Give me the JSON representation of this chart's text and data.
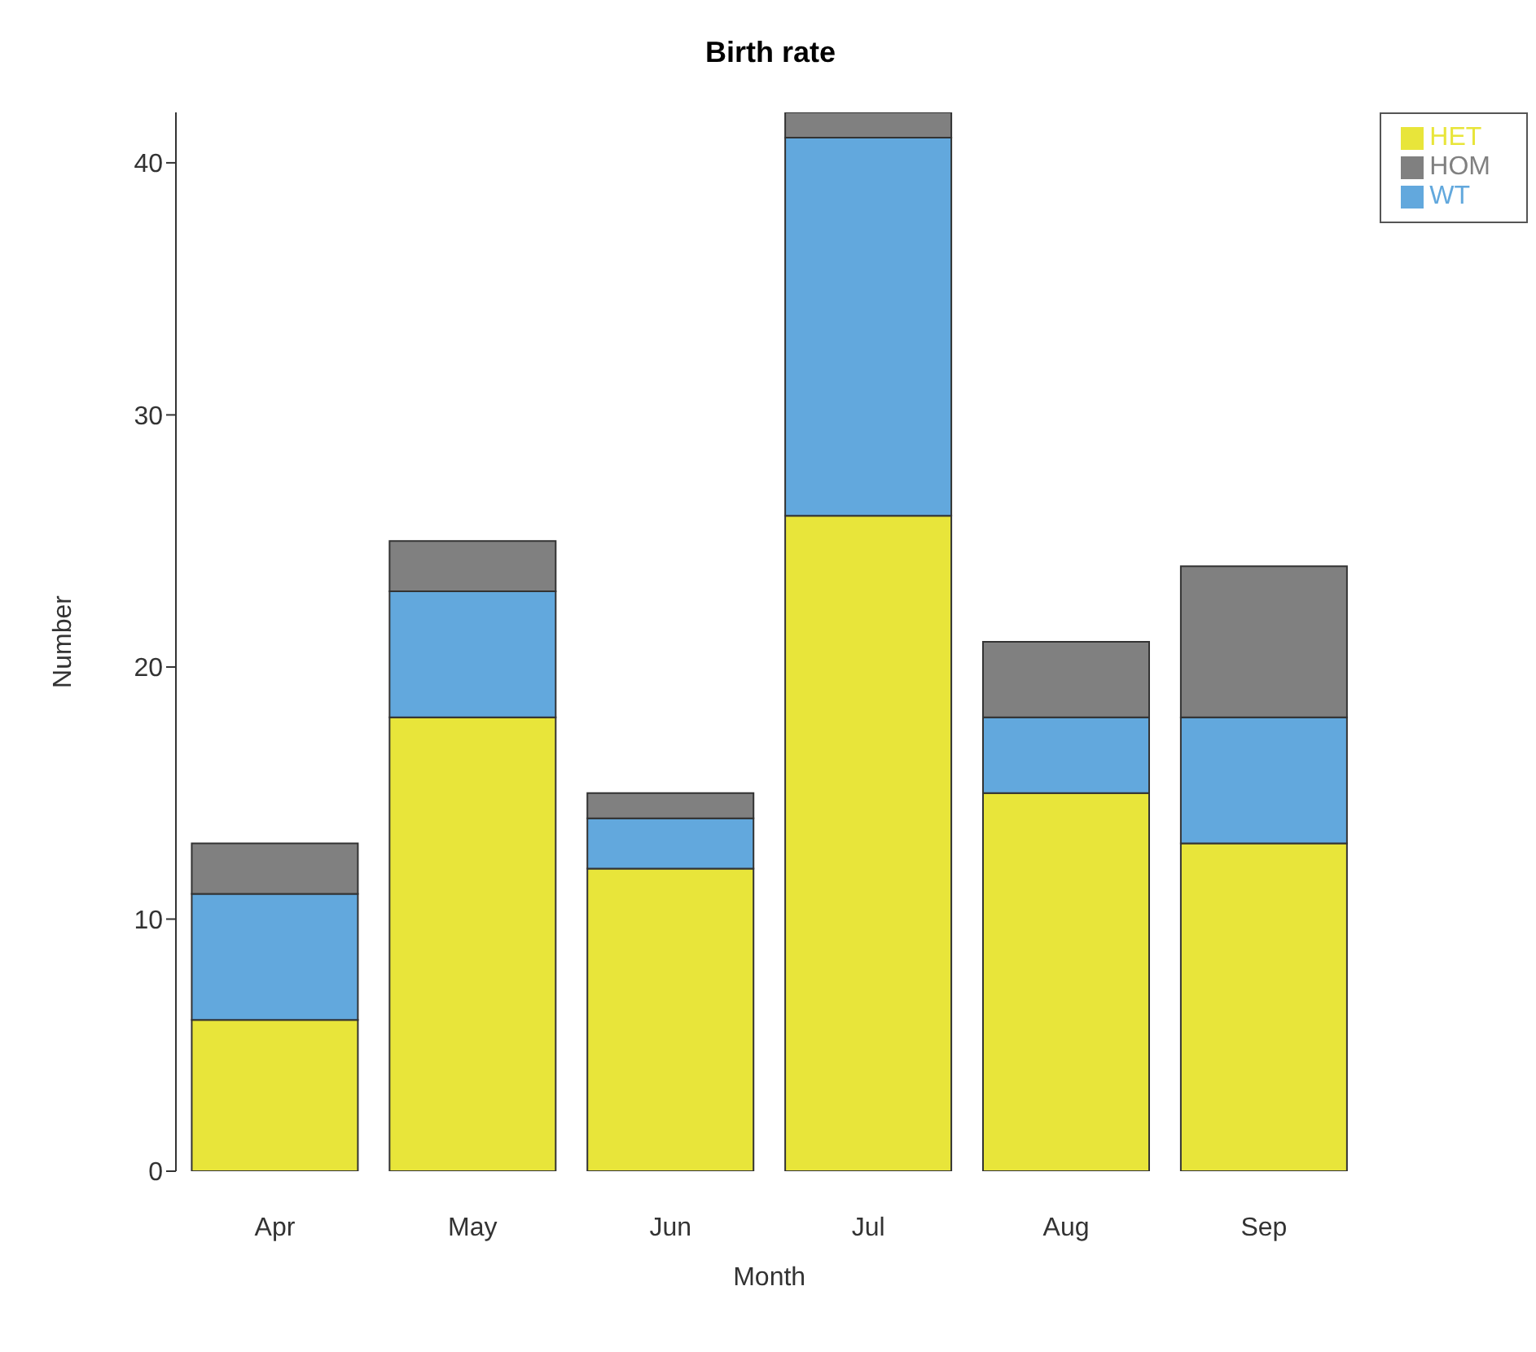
{
  "chart_data": {
    "type": "bar",
    "title": "Birth rate",
    "xlabel": "Month",
    "ylabel": "Number",
    "categories": [
      "Apr",
      "May",
      "Jun",
      "Jul",
      "Aug",
      "Sep"
    ],
    "stacked": true,
    "series": [
      {
        "name": "HET",
        "color": "#e8e53a",
        "values": [
          6,
          18,
          12,
          26,
          15,
          13
        ]
      },
      {
        "name": "WT",
        "color": "#62a8dd",
        "values": [
          5,
          5,
          2,
          15,
          3,
          5
        ]
      },
      {
        "name": "HOM",
        "color": "#808080",
        "values": [
          2,
          2,
          1,
          1,
          3,
          6
        ]
      }
    ],
    "ylim": [
      0,
      42
    ],
    "yticks": [
      0,
      10,
      20,
      30,
      40
    ],
    "grid": false,
    "legend": "top right"
  }
}
